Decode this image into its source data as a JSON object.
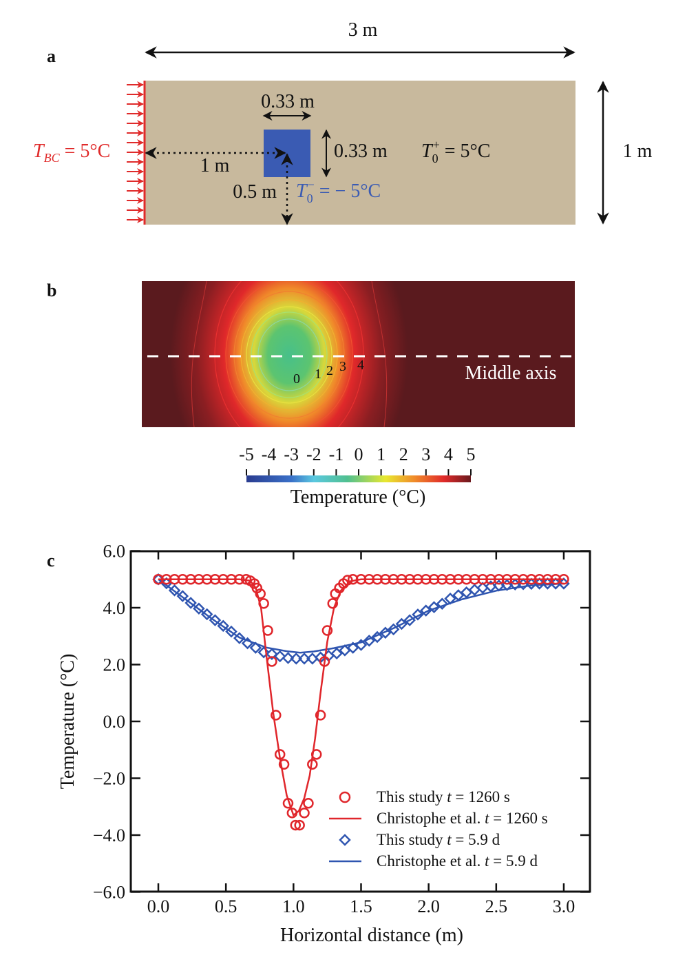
{
  "panel_a": {
    "label": "a",
    "width_label": "3 m",
    "height_label": "1 m",
    "block_width_label": "0.33 m",
    "block_height_label": "0.33 m",
    "distance_x_label": "1 m",
    "distance_y_label": "0.5 m",
    "bc": {
      "T": "T",
      "sub": "BC",
      "rest": " = 5°C"
    },
    "t0_plus": {
      "T": "T",
      "sub": "0",
      "sup": "+",
      "rest": " = 5°C"
    },
    "t0_minus": {
      "T": "T",
      "sub": "0",
      "sup": "−",
      "rest": " = − 5°C"
    },
    "colors": {
      "soil": "#c8b99d",
      "block": "#3a5bb3",
      "boundary": "#e02a2a"
    }
  },
  "panel_b": {
    "label": "b",
    "axis_label": "Middle axis",
    "contour_labels": [
      "0",
      "1",
      "2",
      "3",
      "4"
    ],
    "colorbar": {
      "ticks": [
        "-5",
        "-4",
        "-3",
        "-2",
        "-1",
        "0",
        "1",
        "2",
        "3",
        "4",
        "5"
      ],
      "title": "Temperature (°C)",
      "range": [
        -5,
        5
      ]
    }
  },
  "chart_data": {
    "panel_label": "c",
    "type": "line+scatter",
    "xlabel": "Horizontal distance (m)",
    "ylabel": "Temperature (°C)",
    "xlim": [
      -0.2,
      3.15
    ],
    "ylim": [
      -6,
      6
    ],
    "xticks": [
      "0.0",
      "0.5",
      "1.0",
      "1.5",
      "2.0",
      "2.5",
      "3.0"
    ],
    "yticks": [
      "6.0",
      "4.0",
      "2.0",
      "0.0",
      "−2.0",
      "−4.0",
      "−6.0"
    ],
    "grid": false,
    "legend_placement": "bottom-right",
    "series": [
      {
        "name": "This study t = 1260 s",
        "legend": {
          "pre": "This study ",
          "t": "t",
          "post": " = 1260 s"
        },
        "kind": "scatter",
        "marker": "circle",
        "color": "#e0262b",
        "x": [
          0,
          0.06,
          0.12,
          0.18,
          0.24,
          0.3,
          0.36,
          0.42,
          0.48,
          0.54,
          0.6,
          0.65,
          0.68,
          0.71,
          0.73,
          0.755,
          0.78,
          0.81,
          0.84,
          0.87,
          0.9,
          0.93,
          0.96,
          0.99,
          1.015,
          1.045,
          1.08,
          1.11,
          1.14,
          1.17,
          1.2,
          1.23,
          1.25,
          1.29,
          1.31,
          1.34,
          1.37,
          1.4,
          1.44,
          1.5,
          1.56,
          1.62,
          1.68,
          1.74,
          1.8,
          1.86,
          1.92,
          1.98,
          2.04,
          2.1,
          2.16,
          2.22,
          2.28,
          2.34,
          2.4,
          2.46,
          2.52,
          2.58,
          2.64,
          2.7,
          2.76,
          2.82,
          2.88,
          2.94,
          3.0
        ],
        "y": [
          5.0,
          5.0,
          5.0,
          5.0,
          5.0,
          5.0,
          5.0,
          5.0,
          5.0,
          5.0,
          5.0,
          5.0,
          4.95,
          4.85,
          4.69,
          4.49,
          4.15,
          3.2,
          2.11,
          0.22,
          -1.16,
          -1.51,
          -2.88,
          -3.22,
          -3.65,
          -3.65,
          -3.22,
          -2.88,
          -1.51,
          -1.16,
          0.22,
          2.11,
          3.2,
          4.15,
          4.49,
          4.69,
          4.85,
          4.97,
          5.0,
          5.0,
          5.0,
          5.0,
          5.0,
          5.0,
          5.0,
          5.0,
          5.0,
          5.0,
          5.0,
          5.0,
          5.0,
          5.0,
          5.0,
          5.0,
          5.0,
          5.0,
          5.0,
          5.0,
          5.0,
          5.0,
          5.0,
          5.0,
          5.0,
          5.0,
          5.0
        ]
      },
      {
        "name": "Christophe et al. t = 1260 s",
        "legend": {
          "pre": "Christophe et al. ",
          "t": "t",
          "post": " = 1260 s"
        },
        "kind": "line",
        "color": "#e0262b",
        "x": [
          0,
          0.6,
          0.68,
          0.72,
          0.76,
          0.8,
          0.85,
          0.9,
          0.95,
          1.0,
          1.04,
          1.08,
          1.12,
          1.16,
          1.2,
          1.25,
          1.3,
          1.35,
          1.42,
          1.5,
          2.0,
          3.0
        ],
        "y": [
          5.0,
          5.0,
          4.95,
          4.7,
          4.0,
          2.3,
          0.3,
          -1.3,
          -2.6,
          -3.3,
          -3.15,
          -2.7,
          -1.9,
          -0.6,
          1.0,
          2.8,
          4.0,
          4.6,
          4.93,
          5.0,
          5.0,
          5.0
        ]
      },
      {
        "name": "This study t = 5.9 d",
        "legend": {
          "pre": "This study ",
          "t": "t",
          "post": " = 5.9 d"
        },
        "kind": "scatter",
        "marker": "diamond",
        "color": "#2f55b0",
        "x": [
          0,
          0.06,
          0.12,
          0.18,
          0.24,
          0.3,
          0.36,
          0.42,
          0.48,
          0.54,
          0.6,
          0.66,
          0.72,
          0.78,
          0.84,
          0.9,
          0.96,
          1.02,
          1.08,
          1.14,
          1.2,
          1.26,
          1.32,
          1.38,
          1.44,
          1.5,
          1.56,
          1.62,
          1.68,
          1.74,
          1.8,
          1.86,
          1.92,
          1.98,
          2.04,
          2.1,
          2.16,
          2.22,
          2.28,
          2.34,
          2.4,
          2.46,
          2.52,
          2.58,
          2.64,
          2.7,
          2.76,
          2.82,
          2.88,
          2.94,
          3.0
        ],
        "y": [
          5.0,
          4.86,
          4.61,
          4.41,
          4.17,
          3.97,
          3.77,
          3.56,
          3.36,
          3.16,
          2.93,
          2.75,
          2.59,
          2.43,
          2.37,
          2.29,
          2.23,
          2.21,
          2.21,
          2.21,
          2.25,
          2.31,
          2.39,
          2.5,
          2.59,
          2.69,
          2.84,
          2.97,
          3.12,
          3.24,
          3.43,
          3.56,
          3.76,
          3.9,
          4.02,
          4.14,
          4.32,
          4.44,
          4.54,
          4.63,
          4.7,
          4.75,
          4.78,
          4.8,
          4.82,
          4.83,
          4.84,
          4.85,
          4.85,
          4.85,
          4.85
        ]
      },
      {
        "name": "Christophe et al. t = 5.9 d",
        "legend": {
          "pre": "Christophe et al. ",
          "t": "t",
          "post": " = 5.9 d"
        },
        "kind": "line",
        "color": "#2f55b0",
        "x": [
          0,
          0.2,
          0.4,
          0.6,
          0.8,
          0.95,
          1.05,
          1.15,
          1.3,
          1.5,
          1.75,
          2.0,
          2.25,
          2.5,
          2.75,
          3.0
        ],
        "y": [
          5.0,
          4.3,
          3.6,
          2.95,
          2.6,
          2.47,
          2.42,
          2.46,
          2.58,
          2.78,
          3.3,
          3.9,
          4.3,
          4.6,
          4.78,
          4.85
        ]
      }
    ]
  }
}
